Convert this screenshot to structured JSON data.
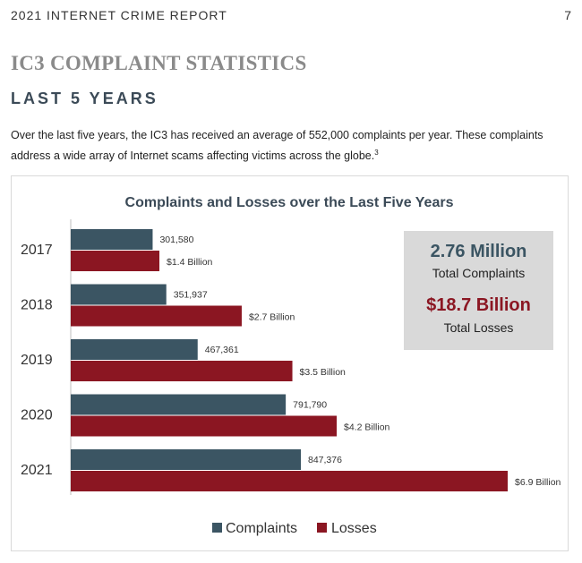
{
  "header": {
    "report_title": "2021 INTERNET CRIME REPORT",
    "page_number": "7"
  },
  "section": {
    "title": "IC3 COMPLAINT STATISTICS",
    "subtitle": "LAST 5 YEARS",
    "intro_text": "Over the last five years, the IC3 has received an average of 552,000 complaints per year. These complaints address a wide array of Internet scams affecting victims across the globe.",
    "footnote_ref": "3"
  },
  "summary": {
    "complaints_value": "2.76 Million",
    "complaints_label": "Total Complaints",
    "losses_value": "$18.7 Billion",
    "losses_label": "Total Losses"
  },
  "chart_data": {
    "type": "bar",
    "orientation": "horizontal",
    "title": "Complaints and Losses over the Last Five Years",
    "categories": [
      "2017",
      "2018",
      "2019",
      "2020",
      "2021"
    ],
    "series": [
      {
        "name": "Complaints",
        "color": "#3b5563",
        "values": [
          301580,
          351937,
          467361,
          791790,
          847376
        ],
        "labels": [
          "301,580",
          "351,937",
          "467,361",
          "791,790",
          "847,376"
        ]
      },
      {
        "name": "Losses",
        "color": "#8b1622",
        "values": [
          1.4,
          2.7,
          3.5,
          4.2,
          6.9
        ],
        "labels": [
          "$1.4 Billion",
          "$2.7 Billion",
          "$3.5 Billion",
          "$4.2 Billion",
          "$6.9 Billion"
        ],
        "unit": "Billion USD"
      }
    ],
    "legend_position": "bottom",
    "grid": false
  }
}
